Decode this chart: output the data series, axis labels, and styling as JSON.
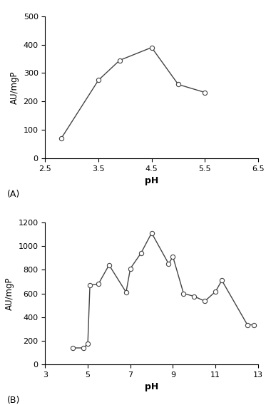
{
  "panel_A": {
    "x": [
      2.8,
      3.5,
      3.9,
      4.5,
      5.0,
      5.5
    ],
    "y": [
      70,
      275,
      345,
      390,
      260,
      232
    ],
    "xlim": [
      2.5,
      6.5
    ],
    "ylim": [
      0,
      500
    ],
    "xticks": [
      2.5,
      3.5,
      4.5,
      5.5,
      6.5
    ],
    "yticks": [
      0,
      100,
      200,
      300,
      400,
      500
    ],
    "xlabel": "pH",
    "ylabel": "AU/mgP",
    "label": "(A)"
  },
  "panel_B": {
    "x": [
      4.3,
      4.8,
      5.0,
      5.1,
      5.5,
      6.0,
      6.8,
      7.0,
      7.5,
      8.0,
      8.8,
      9.0,
      9.5,
      10.0,
      10.5,
      11.0,
      11.3,
      12.5,
      12.8
    ],
    "y": [
      140,
      140,
      175,
      670,
      680,
      840,
      610,
      810,
      940,
      1110,
      850,
      910,
      600,
      575,
      535,
      615,
      710,
      335,
      335
    ],
    "xlim": [
      3,
      13
    ],
    "ylim": [
      0,
      1200
    ],
    "xticks": [
      3,
      5,
      7,
      9,
      11,
      13
    ],
    "yticks": [
      0,
      200,
      400,
      600,
      800,
      1000,
      1200
    ],
    "xlabel": "pH",
    "ylabel": "AU/mgP",
    "label": "(B)"
  },
  "line_color": "#444444",
  "marker": "o",
  "marker_facecolor": "white",
  "marker_edgecolor": "#444444",
  "marker_size": 4.5,
  "linewidth": 1.0,
  "background_color": "white"
}
